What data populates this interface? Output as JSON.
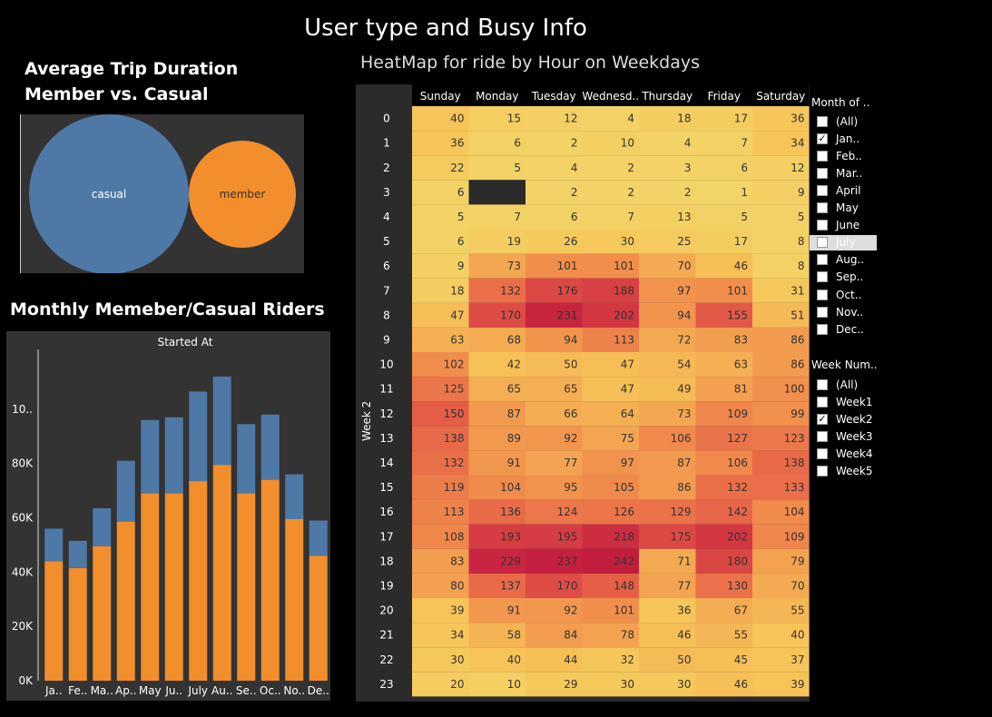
{
  "dashboard": {
    "title": "User type and Busy Info"
  },
  "bubble_chart": {
    "title": "Average Trip Duration Member vs. Casual",
    "colors": {
      "casual": "#4e79a7",
      "member": "#f28e2b"
    },
    "chart_data": {
      "type": "bubble",
      "categories": [
        "casual",
        "member"
      ]
    }
  },
  "monthly_chart": {
    "title": "Monthly Memeber/Casual Riders",
    "header": "Started At",
    "colors": {
      "member": "#f28e2b",
      "casual": "#4e79a7"
    },
    "chart_data": {
      "type": "stacked-bar",
      "categories": [
        "Ja..",
        "Fe..",
        "Ma..",
        "Ap..",
        "May",
        "Ju..",
        "July",
        "Au..",
        "Se..",
        "Oc..",
        "No..",
        "De.."
      ],
      "series": [
        {
          "name": "member",
          "values": [
            44000,
            41500,
            49500,
            58500,
            69000,
            69000,
            73500,
            79500,
            69000,
            74000,
            59500,
            46000
          ]
        },
        {
          "name": "casual",
          "values": [
            12000,
            10000,
            14000,
            22500,
            27000,
            28000,
            33000,
            32500,
            25500,
            24000,
            16500,
            13000
          ]
        }
      ],
      "y_ticks": [
        "0K",
        "20K",
        "40K",
        "60K",
        "80K",
        "10.."
      ],
      "ylim": [
        0,
        122000
      ],
      "xlabel": "",
      "ylabel": ""
    }
  },
  "heatmap": {
    "title": "HeatMap for ride by Hour on Weekdays",
    "row_header": "Week 2",
    "chart_data": {
      "type": "heatmap",
      "columns": [
        "Sunday",
        "Monday",
        "Tuesday",
        "Wednesd..",
        "Thursday",
        "Friday",
        "Saturday"
      ],
      "rows": [
        "0",
        "1",
        "2",
        "3",
        "4",
        "5",
        "6",
        "7",
        "8",
        "9",
        "10",
        "11",
        "12",
        "13",
        "14",
        "15",
        "16",
        "17",
        "18",
        "19",
        "20",
        "21",
        "22",
        "23"
      ],
      "values": [
        [
          40,
          15,
          12,
          4,
          18,
          17,
          36
        ],
        [
          36,
          6,
          2,
          10,
          4,
          7,
          34
        ],
        [
          22,
          5,
          4,
          2,
          3,
          6,
          12
        ],
        [
          6,
          null,
          2,
          2,
          2,
          1,
          9
        ],
        [
          5,
          7,
          6,
          7,
          13,
          5,
          5
        ],
        [
          6,
          19,
          26,
          30,
          25,
          17,
          8
        ],
        [
          9,
          73,
          101,
          101,
          70,
          46,
          8
        ],
        [
          18,
          132,
          176,
          188,
          97,
          101,
          31
        ],
        [
          47,
          170,
          231,
          202,
          94,
          155,
          51
        ],
        [
          63,
          68,
          94,
          113,
          72,
          83,
          86
        ],
        [
          102,
          42,
          50,
          47,
          54,
          63,
          86
        ],
        [
          125,
          65,
          65,
          47,
          49,
          81,
          100
        ],
        [
          150,
          87,
          66,
          64,
          73,
          109,
          99
        ],
        [
          138,
          89,
          92,
          75,
          106,
          127,
          123
        ],
        [
          132,
          91,
          77,
          97,
          87,
          106,
          138
        ],
        [
          119,
          104,
          95,
          105,
          86,
          132,
          133
        ],
        [
          113,
          136,
          124,
          126,
          129,
          142,
          104
        ],
        [
          108,
          193,
          195,
          218,
          175,
          202,
          109
        ],
        [
          83,
          229,
          237,
          242,
          71,
          180,
          79
        ],
        [
          80,
          137,
          170,
          148,
          77,
          130,
          70
        ],
        [
          39,
          91,
          92,
          101,
          36,
          67,
          55
        ],
        [
          34,
          58,
          84,
          78,
          46,
          55,
          40
        ],
        [
          30,
          40,
          44,
          32,
          50,
          45,
          37
        ],
        [
          20,
          10,
          29,
          30,
          30,
          46,
          39
        ]
      ]
    }
  },
  "filters": {
    "month": {
      "title": "Month of ..",
      "items": [
        {
          "label": "(All)",
          "checked": false
        },
        {
          "label": "Jan..",
          "checked": true
        },
        {
          "label": "Feb..",
          "checked": false
        },
        {
          "label": "Mar..",
          "checked": false
        },
        {
          "label": "April",
          "checked": false
        },
        {
          "label": "May",
          "checked": false
        },
        {
          "label": "June",
          "checked": false
        },
        {
          "label": "July",
          "checked": false
        },
        {
          "label": "Aug..",
          "checked": false
        },
        {
          "label": "Sep..",
          "checked": false
        },
        {
          "label": "Oct..",
          "checked": false
        },
        {
          "label": "Nov..",
          "checked": false
        },
        {
          "label": "Dec..",
          "checked": false
        }
      ]
    },
    "week": {
      "title": "Week Num..",
      "items": [
        {
          "label": "(All)",
          "checked": false
        },
        {
          "label": "Week1",
          "checked": false
        },
        {
          "label": "Week2",
          "checked": true
        },
        {
          "label": "Week3",
          "checked": false
        },
        {
          "label": "Week4",
          "checked": false
        },
        {
          "label": "Week5",
          "checked": false
        }
      ]
    }
  }
}
